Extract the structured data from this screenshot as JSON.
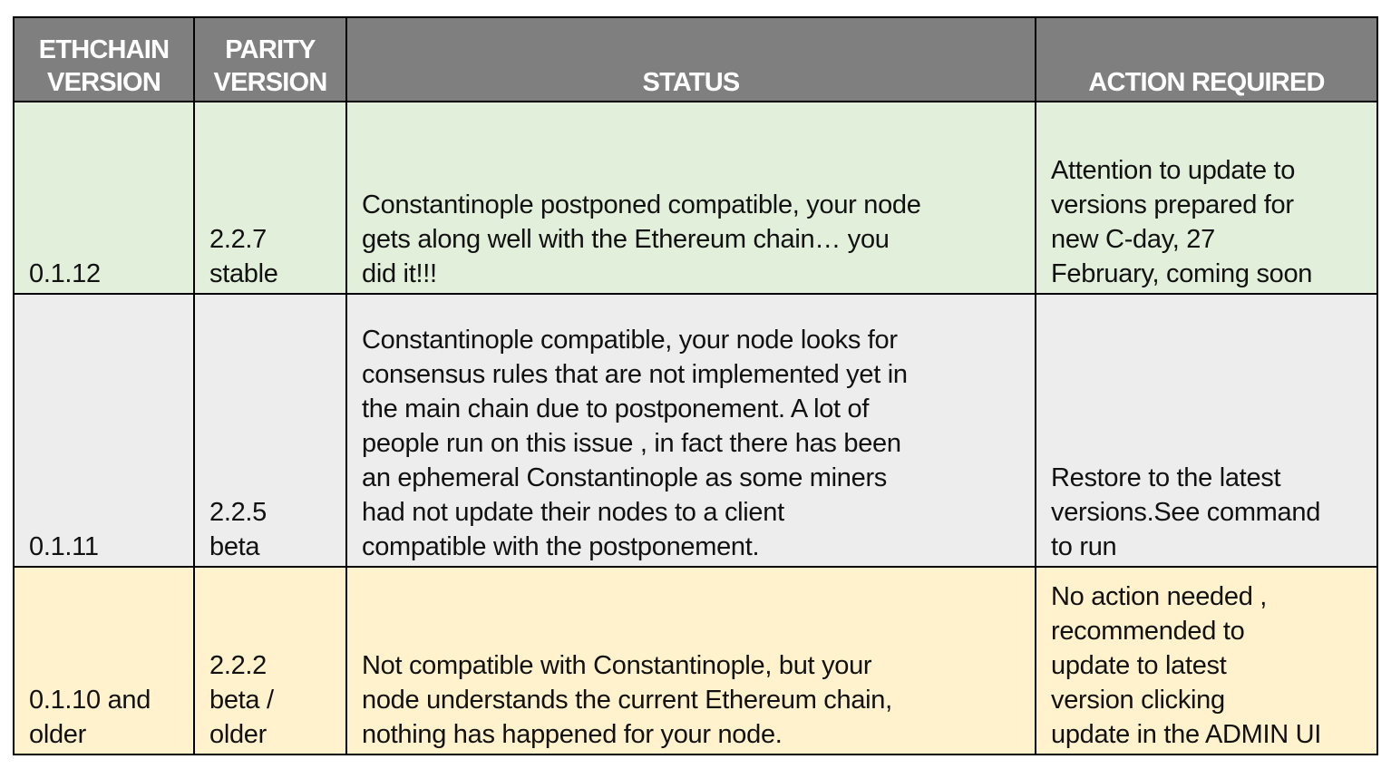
{
  "headers": {
    "ethchain": "ETHCHAIN\nVERSION",
    "parity": "PARITY\nVERSION",
    "status": "STATUS",
    "action": "ACTION REQUIRED"
  },
  "colors": {
    "header": "#7f7f7f",
    "row1": "#e2efda",
    "row2": "#ededed",
    "row3": "#fff2cc"
  },
  "rows": [
    {
      "ethchain": "0.1.12",
      "parity": "2.2.7\nstable",
      "status": "Constantinople postponed compatible, your node\ngets along well with the Ethereum chain… you\ndid it!!!",
      "action": "Attention to update to\nversions  prepared for\nnew C-day, 27\nFebruary, coming soon"
    },
    {
      "ethchain": "0.1.11",
      "parity": "2.2.5\nbeta",
      "status": "Constantinople compatible, your node looks for\nconsensus rules that are not implemented yet in\nthe main chain due to postponement.  A lot of\npeople run on this issue , in fact there has been\nan ephemeral  Constantinople as some miners\nhad not update their nodes to a client\ncompatible with the postponement.",
      "action": "Restore to the latest\nversions.See command\nto run"
    },
    {
      "ethchain": "0.1.10  and\nolder",
      "parity": "2.2.2\nbeta /\nolder",
      "status": "Not compatible with Constantinople, but your\nnode understands the current Ethereum chain,\nnothing has happened for your node.",
      "action": "No action needed ,\nrecommended to\nupdate to latest\nversion clicking\nupdate in the ADMIN UI"
    }
  ]
}
